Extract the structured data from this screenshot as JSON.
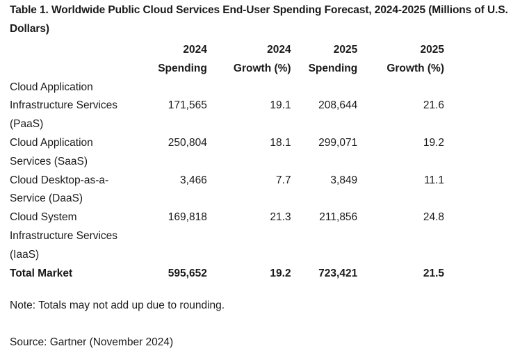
{
  "title": "Table 1. Worldwide Public Cloud Services End-User Spending Forecast, 2024-2025 (Millions of U.S. Dollars)",
  "headers": {
    "spending_2024": [
      "2024",
      "Spending"
    ],
    "growth_2024": [
      "2024",
      "Growth (%)"
    ],
    "spending_2025": [
      "2025",
      "Spending"
    ],
    "growth_2025": [
      "2025",
      "Growth (%)"
    ]
  },
  "rows": [
    {
      "name": "Cloud Application Infrastructure Services (PaaS)",
      "spending_2024": "171,565",
      "growth_2024": "19.1",
      "spending_2025": "208,644",
      "growth_2025": "21.6"
    },
    {
      "name": "Cloud Application Services (SaaS)",
      "spending_2024": "250,804",
      "growth_2024": "18.1",
      "spending_2025": "299,071",
      "growth_2025": "19.2"
    },
    {
      "name": "Cloud Desktop-as-a-Service (DaaS)",
      "spending_2024": "3,466",
      "growth_2024": "7.7",
      "spending_2025": "3,849",
      "growth_2025": "11.1"
    },
    {
      "name": "Cloud System Infrastructure Services (IaaS)",
      "spending_2024": "169,818",
      "growth_2024": "21.3",
      "spending_2025": "211,856",
      "growth_2025": "24.8"
    }
  ],
  "total": {
    "name": "Total Market",
    "spending_2024": "595,652",
    "growth_2024": "19.2",
    "spending_2025": "723,421",
    "growth_2025": "21.5"
  },
  "note": "Note: Totals may not add up due to rounding.",
  "source": "Source: Gartner (November 2024)"
}
